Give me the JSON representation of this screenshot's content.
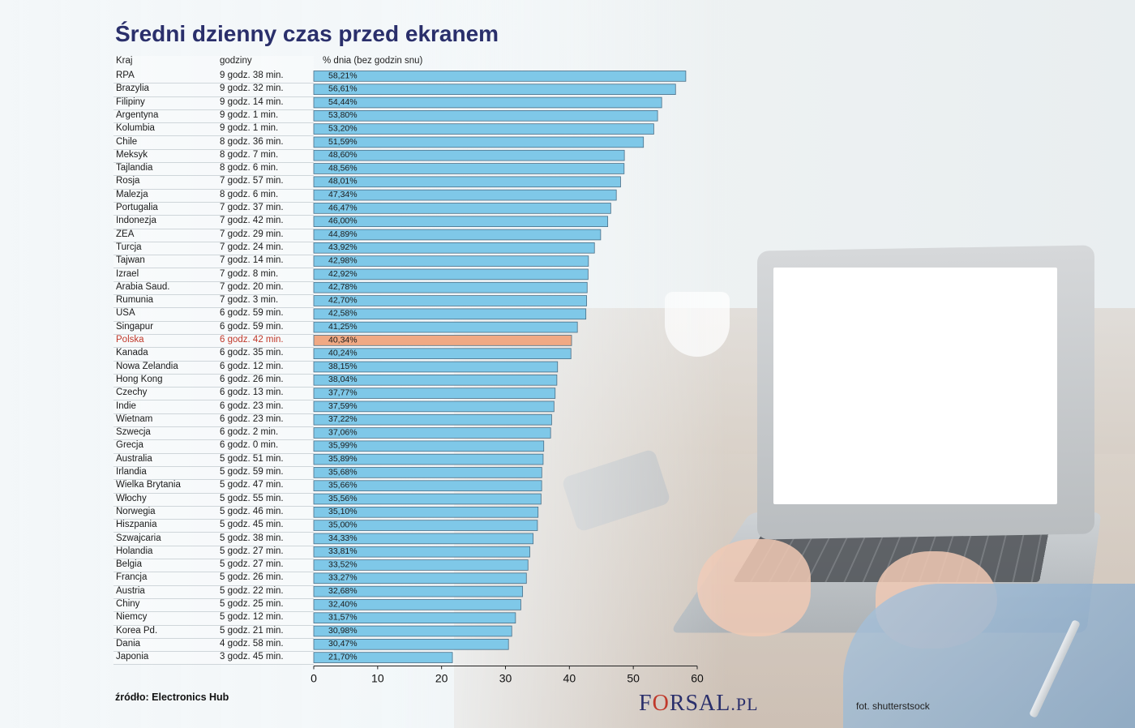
{
  "title": "Średni dzienny czas przed ekranem",
  "headers": {
    "country": "Kraj",
    "hours": "godziny",
    "percent": "% dnia (bez godzin snu)"
  },
  "source": "źródło: Electronics Hub",
  "logo": {
    "main_pre": "F",
    "main_o": "O",
    "main_post": "RSAL",
    "tld": ".PL"
  },
  "photo_credit": "fot. shutterstsock",
  "colors": {
    "bar": "#7fc8e8",
    "bar_stroke": "#4a6e86",
    "highlight": "#f0a984",
    "highlight_text": "#c0392b",
    "title": "#2a2f6b"
  },
  "chart_data": {
    "type": "bar",
    "orientation": "horizontal",
    "title": "Średni dzienny czas przed ekranem",
    "xlabel": "% dnia (bez godzin snu)",
    "xlim": [
      0,
      60
    ],
    "xticks": [
      0,
      10,
      20,
      30,
      40,
      50,
      60
    ],
    "highlight": "Polska",
    "rows": [
      {
        "country": "RPA",
        "hours": "9 godz. 38 min.",
        "value": 58.21,
        "label": "58,21%"
      },
      {
        "country": "Brazylia",
        "hours": "9 godz. 32 min.",
        "value": 56.61,
        "label": "56,61%"
      },
      {
        "country": "Filipiny",
        "hours": "9 godz. 14 min.",
        "value": 54.44,
        "label": "54,44%"
      },
      {
        "country": "Argentyna",
        "hours": "9 godz. 1 min.",
        "value": 53.8,
        "label": "53,80%"
      },
      {
        "country": "Kolumbia",
        "hours": "9 godz. 1 min.",
        "value": 53.2,
        "label": "53,20%"
      },
      {
        "country": "Chile",
        "hours": "8 godz. 36 min.",
        "value": 51.59,
        "label": "51,59%"
      },
      {
        "country": "Meksyk",
        "hours": "8 godz. 7 min.",
        "value": 48.6,
        "label": "48,60%"
      },
      {
        "country": "Tajlandia",
        "hours": "8 godz. 6 min.",
        "value": 48.56,
        "label": "48,56%"
      },
      {
        "country": "Rosja",
        "hours": "7 godz. 57 min.",
        "value": 48.01,
        "label": "48,01%"
      },
      {
        "country": "Malezja",
        "hours": "8 godz. 6 min.",
        "value": 47.34,
        "label": "47,34%"
      },
      {
        "country": "Portugalia",
        "hours": "7 godz. 37 min.",
        "value": 46.47,
        "label": "46,47%"
      },
      {
        "country": "Indonezja",
        "hours": "7 godz. 42 min.",
        "value": 46.0,
        "label": "46,00%"
      },
      {
        "country": "ZEA",
        "hours": "7 godz. 29 min.",
        "value": 44.89,
        "label": "44,89%"
      },
      {
        "country": "Turcja",
        "hours": "7 godz. 24 min.",
        "value": 43.92,
        "label": "43,92%"
      },
      {
        "country": "Tajwan",
        "hours": "7 godz. 14 min.",
        "value": 42.98,
        "label": "42,98%"
      },
      {
        "country": "Izrael",
        "hours": "7 godz. 8 min.",
        "value": 42.92,
        "label": "42,92%"
      },
      {
        "country": "Arabia Saud.",
        "hours": "7 godz. 20 min.",
        "value": 42.78,
        "label": "42,78%"
      },
      {
        "country": "Rumunia",
        "hours": "7 godz. 3 min.",
        "value": 42.7,
        "label": "42,70%"
      },
      {
        "country": "USA",
        "hours": "6 godz. 59 min.",
        "value": 42.58,
        "label": "42,58%"
      },
      {
        "country": "Singapur",
        "hours": "6 godz. 59 min.",
        "value": 41.25,
        "label": "41,25%"
      },
      {
        "country": "Polska",
        "hours": "6 godz. 42 min.",
        "value": 40.34,
        "label": "40,34%"
      },
      {
        "country": "Kanada",
        "hours": "6 godz. 35 min.",
        "value": 40.24,
        "label": "40,24%"
      },
      {
        "country": "Nowa Zelandia",
        "hours": "6 godz. 12 min.",
        "value": 38.15,
        "label": "38,15%"
      },
      {
        "country": "Hong Kong",
        "hours": "6 godz. 26 min.",
        "value": 38.04,
        "label": "38,04%"
      },
      {
        "country": "Czechy",
        "hours": "6 godz. 13 min.",
        "value": 37.77,
        "label": "37,77%"
      },
      {
        "country": "Indie",
        "hours": "6 godz. 23 min.",
        "value": 37.59,
        "label": "37,59%"
      },
      {
        "country": "Wietnam",
        "hours": "6 godz. 23 min.",
        "value": 37.22,
        "label": "37,22%"
      },
      {
        "country": "Szwecja",
        "hours": "6 godz. 2 min.",
        "value": 37.06,
        "label": "37,06%"
      },
      {
        "country": "Grecja",
        "hours": "6 godz. 0 min.",
        "value": 35.99,
        "label": "35,99%"
      },
      {
        "country": "Australia",
        "hours": "5 godz. 51 min.",
        "value": 35.89,
        "label": "35,89%"
      },
      {
        "country": "Irlandia",
        "hours": "5 godz. 59 min.",
        "value": 35.68,
        "label": "35,68%"
      },
      {
        "country": "Wielka Brytania",
        "hours": "5 godz. 47 min.",
        "value": 35.66,
        "label": "35,66%"
      },
      {
        "country": "Włochy",
        "hours": "5 godz. 55 min.",
        "value": 35.56,
        "label": "35,56%"
      },
      {
        "country": "Norwegia",
        "hours": "5 godz. 46 min.",
        "value": 35.1,
        "label": "35,10%"
      },
      {
        "country": "Hiszpania",
        "hours": "5 godz. 45 min.",
        "value": 35.0,
        "label": "35,00%"
      },
      {
        "country": "Szwajcaria",
        "hours": "5 godz. 38 min.",
        "value": 34.33,
        "label": "34,33%"
      },
      {
        "country": "Holandia",
        "hours": "5 godz. 27 min.",
        "value": 33.81,
        "label": "33,81%"
      },
      {
        "country": "Belgia",
        "hours": "5 godz. 27 min.",
        "value": 33.52,
        "label": "33,52%"
      },
      {
        "country": "Francja",
        "hours": "5 godz. 26 min.",
        "value": 33.27,
        "label": "33,27%"
      },
      {
        "country": "Austria",
        "hours": "5 godz. 22 min.",
        "value": 32.68,
        "label": "32,68%"
      },
      {
        "country": "Chiny",
        "hours": "5 godz. 25 min.",
        "value": 32.4,
        "label": "32,40%"
      },
      {
        "country": "Niemcy",
        "hours": "5 godz. 12 min.",
        "value": 31.57,
        "label": "31,57%"
      },
      {
        "country": "Korea Pd.",
        "hours": "5 godz. 21 min.",
        "value": 30.98,
        "label": "30,98%"
      },
      {
        "country": "Dania",
        "hours": "4 godz. 58 min.",
        "value": 30.47,
        "label": "30,47%"
      },
      {
        "country": "Japonia",
        "hours": "3 godz. 45 min.",
        "value": 21.7,
        "label": "21,70%"
      }
    ]
  }
}
